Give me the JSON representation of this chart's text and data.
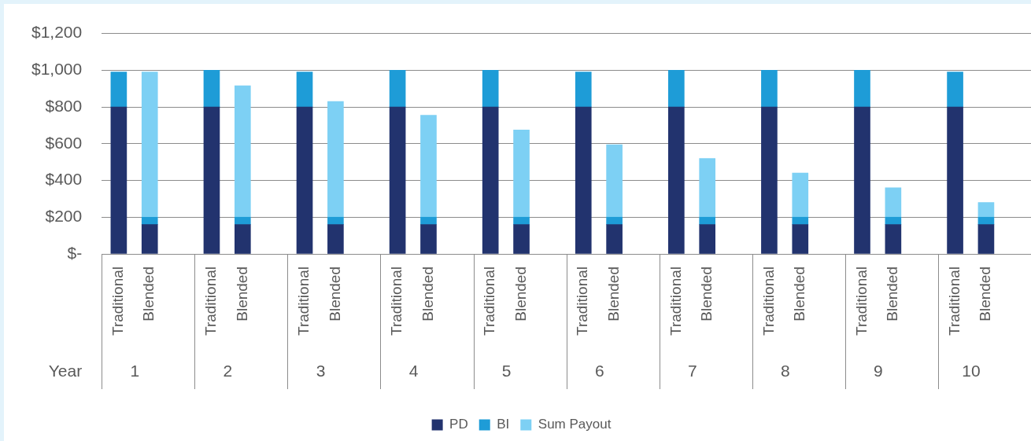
{
  "chart_data": {
    "type": "bar",
    "stacked": true,
    "categories": [
      "Traditional",
      "Blended",
      "Traditional",
      "Blended",
      "Traditional",
      "Blended",
      "Traditional",
      "Blended",
      "Traditional",
      "Blended",
      "Traditional",
      "Blended",
      "Traditional",
      "Blended",
      "Traditional",
      "Blended",
      "Traditional",
      "Blended",
      "Traditional",
      "Blended"
    ],
    "series": [
      {
        "name": "PD",
        "color": "#22336e",
        "values": [
          800,
          160,
          800,
          160,
          800,
          160,
          800,
          160,
          800,
          160,
          800,
          160,
          800,
          160,
          800,
          160,
          800,
          160,
          800,
          160
        ]
      },
      {
        "name": "BI",
        "color": "#1e9cd7",
        "values": [
          190,
          40,
          200,
          40,
          190,
          40,
          200,
          40,
          200,
          40,
          190,
          40,
          200,
          40,
          200,
          40,
          200,
          40,
          190,
          40
        ]
      },
      {
        "name": "Sum Payout",
        "color": "#7dd0f4",
        "values": [
          null,
          790,
          null,
          715,
          null,
          630,
          null,
          555,
          null,
          475,
          null,
          395,
          null,
          320,
          null,
          240,
          null,
          160,
          null,
          80
        ]
      }
    ],
    "ylim": [
      0,
      1200
    ],
    "yticks": [
      {
        "value": 0,
        "label": "$-"
      },
      {
        "value": 200,
        "label": "$200"
      },
      {
        "value": 400,
        "label": "$400"
      },
      {
        "value": 600,
        "label": "$600"
      },
      {
        "value": 800,
        "label": "$800"
      },
      {
        "value": 1000,
        "label": "$1,000"
      },
      {
        "value": 1200,
        "label": "$1,200"
      }
    ],
    "annotations": [
      "Year",
      "1",
      "2",
      "3",
      "4",
      "5",
      "6",
      "7",
      "8",
      "9",
      "10"
    ],
    "grid": "y",
    "legend": "bottom"
  }
}
